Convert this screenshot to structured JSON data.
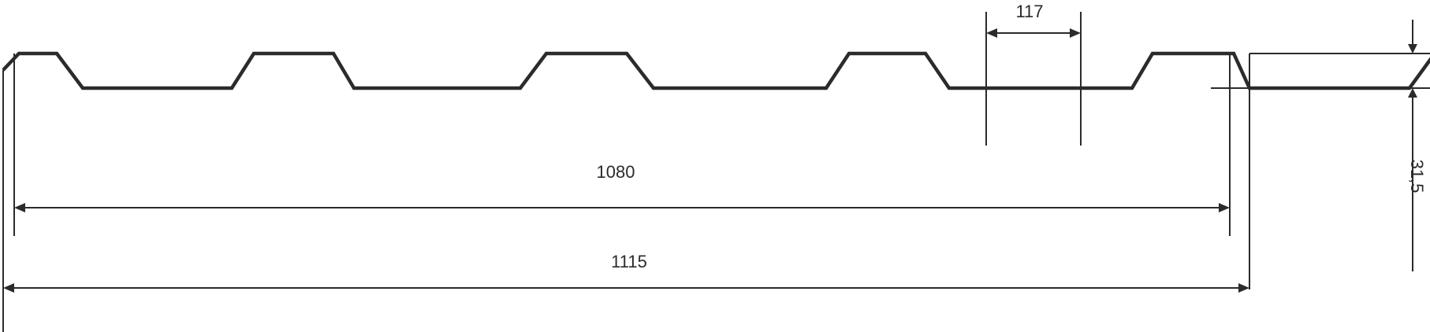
{
  "drawing": {
    "dimensions": {
      "rib_top_width": "117",
      "useful_width": "1080",
      "total_width": "1115",
      "profile_height": "31,5"
    }
  }
}
